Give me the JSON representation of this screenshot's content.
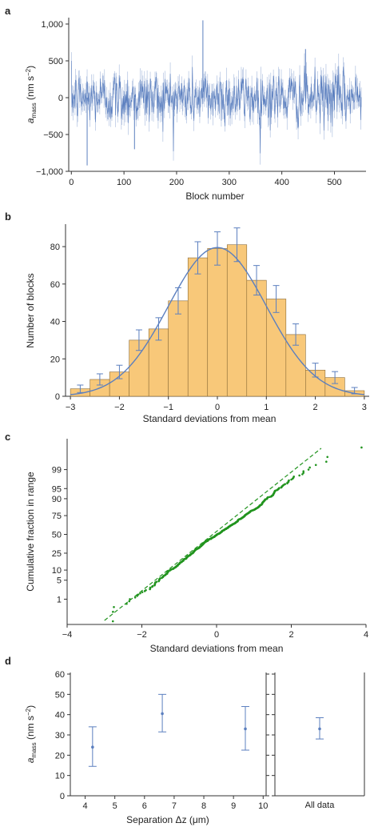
{
  "panels": {
    "a": "a",
    "b": "b",
    "c": "c",
    "d": "d"
  },
  "chart_data": [
    {
      "type": "line",
      "panel": "a",
      "xlabel": "Block number",
      "ylabel": "a_mass (nm s^-2)",
      "xlim": [
        -5,
        560
      ],
      "ylim": [
        -1000,
        1000
      ],
      "x_ticks": [
        0,
        100,
        200,
        300,
        400,
        500
      ],
      "y_ticks": [
        -1000,
        -500,
        0,
        500,
        1000
      ],
      "y_tick_labels": [
        "−1,000",
        "−500",
        "0",
        "500",
        "1,000"
      ],
      "n_points": 552,
      "mean": 0,
      "std_dev": 180,
      "error_bar_typical": 120,
      "notable_values": [
        {
          "x": 30,
          "y": -920
        },
        {
          "x": 250,
          "y": 1050
        },
        {
          "x": 120,
          "y": -700
        },
        {
          "x": 445,
          "y": 660
        }
      ],
      "series_color": "#5b7fbf"
    },
    {
      "type": "bar",
      "panel": "b",
      "xlabel": "Standard deviations from mean",
      "ylabel": "Number of blocks",
      "xlim": [
        -3.1,
        3.1
      ],
      "ylim": [
        0,
        92
      ],
      "x_ticks": [
        -3,
        -2,
        -1,
        0,
        1,
        2,
        3
      ],
      "y_ticks": [
        0,
        20,
        40,
        60,
        80
      ],
      "bin_edges": [
        -3.0,
        -2.6,
        -2.2,
        -1.8,
        -1.4,
        -1.0,
        -0.6,
        -0.2,
        0.2,
        0.6,
        1.0,
        1.4,
        1.8,
        2.2,
        2.6
      ],
      "values": [
        4,
        9,
        13,
        30,
        36,
        51,
        74,
        79,
        81,
        62,
        52,
        33,
        14,
        10,
        3
      ],
      "errors": [
        2,
        3,
        3.6,
        5.5,
        6,
        7,
        8.6,
        8.9,
        9,
        7.9,
        7.2,
        5.7,
        3.7,
        3.2,
        1.7
      ],
      "fit": {
        "type": "gaussian",
        "peak": 79.5,
        "mean": 0,
        "sigma": 1.0
      },
      "bar_color": "#f8c879",
      "fit_color": "#5b7fbf"
    },
    {
      "type": "scatter",
      "panel": "c",
      "xlabel": "Standard deviations from mean",
      "ylabel": "Cumulative fraction in range",
      "xlim": [
        -4,
        4
      ],
      "x_ticks": [
        -4,
        -2,
        0,
        2,
        4
      ],
      "y_tick_labels": [
        "1",
        "5",
        "10",
        "25",
        "50",
        "75",
        "90",
        "95",
        "99"
      ],
      "y_tick_values": [
        1,
        5,
        10,
        25,
        50,
        75,
        90,
        95,
        99
      ],
      "n_points": 552,
      "reference_line": {
        "from": [
          -3,
          0.1
        ],
        "to": [
          2.8,
          99.9
        ]
      },
      "series_color": "#22941f"
    },
    {
      "type": "scatter",
      "panel": "d",
      "xlabel": "Separation Δz (μm)",
      "ylabel": "a_mass (nm s^-2)",
      "xlim": [
        3.5,
        10.1
      ],
      "ylim": [
        0,
        60
      ],
      "x_ticks": [
        4,
        5,
        6,
        7,
        8,
        9,
        10
      ],
      "y_ticks": [
        0,
        10,
        20,
        30,
        40,
        50,
        60
      ],
      "points": [
        {
          "x": 4.25,
          "y": 24,
          "err_low": 14.5,
          "err_high": 34
        },
        {
          "x": 6.6,
          "y": 40.5,
          "err_low": 31.5,
          "err_high": 50
        },
        {
          "x": 9.4,
          "y": 33,
          "err_low": 22.5,
          "err_high": 44
        }
      ],
      "all_data": {
        "label": "All data",
        "y": 33,
        "err_low": 28,
        "err_high": 38.5
      },
      "series_color": "#5b7fbf"
    }
  ]
}
